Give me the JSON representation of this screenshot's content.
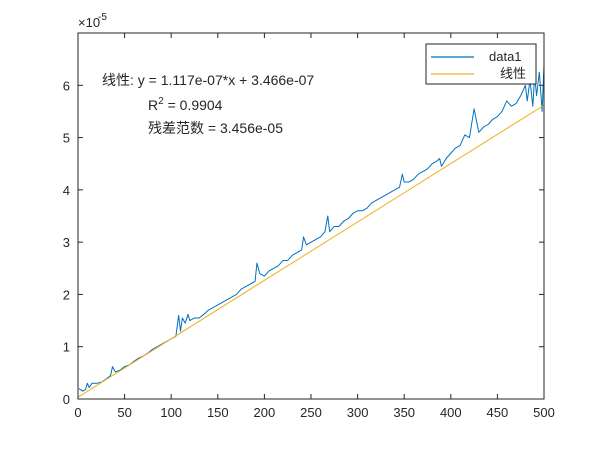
{
  "chart_data": {
    "type": "line",
    "xlim": [
      0,
      500
    ],
    "ylim": [
      0,
      7e-05
    ],
    "y_exponent_label": "×10",
    "y_exponent_power": "-5",
    "x_ticks": [
      0,
      50,
      100,
      150,
      200,
      250,
      300,
      350,
      400,
      450,
      500
    ],
    "x_tick_labels": [
      "0",
      "50",
      "100",
      "150",
      "200",
      "250",
      "300",
      "350",
      "400",
      "450",
      "500"
    ],
    "y_ticks": [
      0,
      1e-05,
      2e-05,
      3e-05,
      4e-05,
      5e-05,
      6e-05
    ],
    "y_tick_labels": [
      "0",
      "1",
      "2",
      "3",
      "4",
      "5",
      "6"
    ],
    "grid": false,
    "legend_position": "top-right",
    "colors": {
      "data": "#0072BD",
      "fit": "#EDB120",
      "axis": "#262626"
    },
    "series": [
      {
        "name": "data1",
        "x": [
          1,
          5,
          8,
          10,
          12,
          15,
          20,
          25,
          30,
          35,
          37,
          40,
          45,
          50,
          55,
          60,
          65,
          70,
          75,
          80,
          85,
          90,
          95,
          100,
          105,
          108,
          110,
          112,
          115,
          118,
          120,
          125,
          130,
          135,
          140,
          145,
          150,
          155,
          160,
          165,
          170,
          175,
          180,
          185,
          190,
          192,
          195,
          200,
          205,
          210,
          215,
          220,
          225,
          230,
          235,
          240,
          242,
          245,
          250,
          255,
          260,
          265,
          268,
          270,
          275,
          280,
          285,
          290,
          295,
          300,
          305,
          310,
          315,
          320,
          325,
          330,
          335,
          340,
          345,
          348,
          350,
          355,
          360,
          365,
          370,
          375,
          380,
          385,
          388,
          390,
          395,
          400,
          405,
          410,
          415,
          420,
          425,
          430,
          435,
          440,
          445,
          450,
          455,
          460,
          465,
          470,
          475,
          480,
          482,
          485,
          488,
          490,
          492,
          495,
          498,
          500
        ],
        "y": [
          2e-06,
          1.5e-06,
          1.8e-06,
          3e-06,
          2.2e-06,
          3e-06,
          3e-06,
          3.2e-06,
          3.8e-06,
          4.5e-06,
          6.2e-06,
          5.2e-06,
          5.5e-06,
          6.2e-06,
          6.5e-06,
          7.2e-06,
          7.8e-06,
          8.2e-06,
          8.8e-06,
          9.5e-06,
          1e-05,
          1.05e-05,
          1.1e-05,
          1.15e-05,
          1.2e-05,
          1.6e-05,
          1.3e-05,
          1.55e-05,
          1.45e-05,
          1.62e-05,
          1.5e-05,
          1.55e-05,
          1.55e-05,
          1.62e-05,
          1.7e-05,
          1.75e-05,
          1.8e-05,
          1.85e-05,
          1.9e-05,
          1.95e-05,
          2e-05,
          2.1e-05,
          2.15e-05,
          2.2e-05,
          2.25e-05,
          2.6e-05,
          2.4e-05,
          2.35e-05,
          2.45e-05,
          2.5e-05,
          2.55e-05,
          2.65e-05,
          2.65e-05,
          2.75e-05,
          2.8e-05,
          2.85e-05,
          3.1e-05,
          2.95e-05,
          3e-05,
          3.05e-05,
          3.1e-05,
          3.2e-05,
          3.5e-05,
          3.2e-05,
          3.3e-05,
          3.3e-05,
          3.4e-05,
          3.45e-05,
          3.55e-05,
          3.6e-05,
          3.6e-05,
          3.65e-05,
          3.75e-05,
          3.8e-05,
          3.85e-05,
          3.9e-05,
          3.95e-05,
          4e-05,
          4.05e-05,
          4.3e-05,
          4.15e-05,
          4.15e-05,
          4.2e-05,
          4.3e-05,
          4.35e-05,
          4.4e-05,
          4.5e-05,
          4.55e-05,
          4.6e-05,
          4.45e-05,
          4.6e-05,
          4.7e-05,
          4.8e-05,
          4.85e-05,
          5.05e-05,
          5e-05,
          5.55e-05,
          5.1e-05,
          5.2e-05,
          5.25e-05,
          5.35e-05,
          5.4e-05,
          5.5e-05,
          5.7e-05,
          5.6e-05,
          5.65e-05,
          5.8e-05,
          6e-05,
          5.7e-05,
          6.1e-05,
          5.6e-05,
          6.2e-05,
          5.8e-05,
          6.25e-05,
          5.5e-05,
          6.4e-05
        ]
      },
      {
        "name": "线性",
        "x": [
          0,
          500
        ],
        "y": [
          3.466e-07,
          5.6197e-05
        ]
      }
    ],
    "annotations": {
      "line1": "线性:  y = 1.117e-07*x + 3.466e-07",
      "r2_prefix": "R",
      "r2_sup": "2",
      "r2_rest": " = 0.9904",
      "line3": "残差范数 = 3.456e-05"
    }
  }
}
